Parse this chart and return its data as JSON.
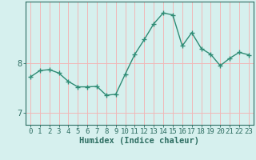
{
  "x": [
    0,
    1,
    2,
    3,
    4,
    5,
    6,
    7,
    8,
    9,
    10,
    11,
    12,
    13,
    14,
    15,
    16,
    17,
    18,
    19,
    20,
    21,
    22,
    23
  ],
  "y": [
    7.72,
    7.85,
    7.87,
    7.8,
    7.63,
    7.52,
    7.52,
    7.53,
    7.35,
    7.37,
    7.78,
    8.18,
    8.48,
    8.8,
    9.02,
    8.98,
    8.35,
    8.62,
    8.3,
    8.18,
    7.95,
    8.1,
    8.22,
    8.17
  ],
  "xlabel": "Humidex (Indice chaleur)",
  "xlim": [
    -0.5,
    23.5
  ],
  "ylim": [
    6.75,
    9.25
  ],
  "yticks": [
    7,
    8
  ],
  "xticks": [
    0,
    1,
    2,
    3,
    4,
    5,
    6,
    7,
    8,
    9,
    10,
    11,
    12,
    13,
    14,
    15,
    16,
    17,
    18,
    19,
    20,
    21,
    22,
    23
  ],
  "line_color": "#2e8b74",
  "marker": "+",
  "marker_size": 4,
  "bg_color": "#d6f0ee",
  "grid_color": "#f0b8b8",
  "axis_color": "#2e6e62",
  "label_fontsize": 7.5,
  "tick_fontsize": 6.5
}
